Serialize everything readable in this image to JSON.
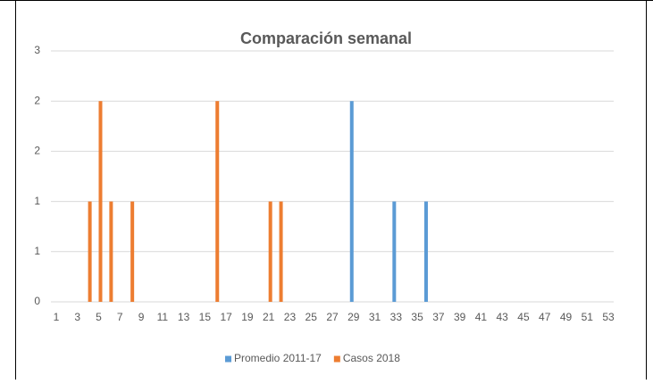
{
  "chart_data": {
    "type": "bar",
    "title": "Comparación semanal",
    "categories": [
      "1",
      null,
      "3",
      null,
      "5",
      null,
      "7",
      null,
      "9",
      null,
      "11",
      null,
      "13",
      null,
      "15",
      null,
      "17",
      null,
      "19",
      null,
      "21",
      null,
      "23",
      null,
      "25",
      null,
      "27",
      null,
      "29",
      null,
      "31",
      null,
      "33",
      null,
      "35",
      null,
      "37",
      null,
      "39",
      null,
      "41",
      null,
      "43",
      null,
      "45",
      null,
      "47",
      null,
      "49",
      null,
      "51",
      null,
      "53"
    ],
    "series": [
      {
        "name": "Promedio 2011-17",
        "color": "#5b9bd5",
        "values": [
          0,
          0,
          0,
          0,
          0,
          0,
          0,
          0,
          0,
          0,
          0,
          0,
          0,
          0,
          0,
          0,
          0,
          0,
          0,
          0,
          0,
          0,
          0,
          0,
          0,
          0,
          0,
          0,
          2,
          0,
          0,
          0,
          1,
          0,
          0,
          1,
          0,
          0,
          0,
          0,
          0,
          0,
          0,
          0,
          0,
          0,
          0,
          0,
          0,
          0,
          0,
          0,
          0
        ]
      },
      {
        "name": "Casos 2018",
        "color": "#ed7d31",
        "values": [
          0,
          0,
          0,
          1,
          2,
          1,
          0,
          1,
          0,
          0,
          0,
          0,
          0,
          0,
          0,
          2,
          0,
          0,
          0,
          0,
          1,
          1,
          0,
          0,
          0,
          0,
          0,
          0,
          0,
          0,
          0,
          0,
          0,
          0,
          0,
          0,
          0,
          0,
          0,
          0,
          0,
          0,
          0,
          0,
          0,
          0,
          0,
          0,
          0,
          0,
          0,
          0,
          0
        ]
      }
    ],
    "ylim": [
      0,
      2.5
    ],
    "yticks": [
      0,
      {
        "value": 0.5,
        "label": "1"
      },
      1,
      {
        "value": 1.5,
        "label": "2"
      },
      2,
      {
        "value": 2.5,
        "label": "3"
      }
    ],
    "grid": true,
    "legend": "bottom"
  }
}
